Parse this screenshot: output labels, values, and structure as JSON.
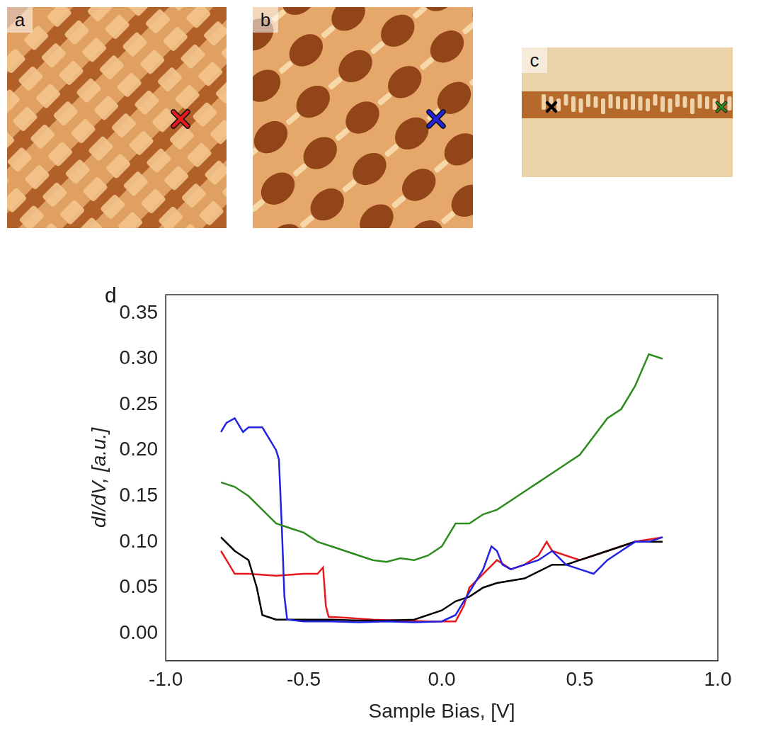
{
  "panels": [
    {
      "label": "a"
    },
    {
      "label": "b"
    },
    {
      "label": "c"
    },
    {
      "label": "d"
    }
  ],
  "chart_data": {
    "type": "line",
    "x_label": "Sample Bias, [V]",
    "y_label": "dI/dV, [a.u.]",
    "xlim": [
      -1.0,
      1.0
    ],
    "xticks": [
      {
        "value": -1.0,
        "label": "-1.0"
      },
      -0.5,
      {
        "value": 0.0,
        "label": "0.0"
      },
      0.5,
      {
        "value": 1.0,
        "label": "1.0"
      }
    ],
    "ylim": [
      -0.03,
      0.37
    ],
    "yticks": [
      {
        "value": 0.0,
        "label": "0.00"
      },
      0.05,
      {
        "value": 0.1,
        "label": "0.10"
      },
      0.15,
      {
        "value": 0.2,
        "label": "0.20"
      },
      0.25,
      {
        "value": 0.3,
        "label": "0.30"
      },
      0.35
    ],
    "grid": false,
    "series": [
      {
        "color": "#2e8b1e",
        "x": [
          -0.8,
          -0.75,
          -0.7,
          -0.65,
          -0.6,
          -0.55,
          -0.5,
          -0.45,
          -0.4,
          -0.35,
          -0.3,
          -0.25,
          -0.2,
          -0.15,
          -0.1,
          -0.05,
          0.0,
          0.05,
          0.1,
          0.15,
          0.2,
          0.25,
          0.3,
          0.35,
          0.4,
          0.45,
          0.5,
          0.55,
          0.6,
          0.65,
          0.7,
          0.75,
          0.8
        ],
        "values": [
          0.165,
          0.16,
          0.15,
          0.135,
          0.12,
          0.115,
          0.11,
          0.1,
          0.095,
          0.09,
          0.085,
          0.08,
          0.078,
          0.082,
          0.08,
          0.085,
          0.095,
          0.12,
          0.12,
          0.13,
          0.135,
          0.145,
          0.155,
          0.165,
          0.175,
          0.185,
          0.195,
          0.215,
          0.235,
          0.245,
          0.27,
          0.305,
          0.3
        ]
      },
      {
        "color": "#2222e0",
        "x": [
          -0.8,
          -0.78,
          -0.75,
          -0.72,
          -0.7,
          -0.65,
          -0.62,
          -0.6,
          -0.59,
          -0.58,
          -0.57,
          -0.56,
          -0.5,
          -0.4,
          -0.3,
          -0.2,
          -0.1,
          0.0,
          0.05,
          0.1,
          0.15,
          0.18,
          0.2,
          0.22,
          0.25,
          0.3,
          0.35,
          0.4,
          0.45,
          0.5,
          0.55,
          0.6,
          0.65,
          0.7,
          0.75,
          0.8
        ],
        "values": [
          0.22,
          0.23,
          0.235,
          0.22,
          0.225,
          0.225,
          0.21,
          0.2,
          0.19,
          0.12,
          0.04,
          0.015,
          0.013,
          0.013,
          0.012,
          0.013,
          0.012,
          0.013,
          0.02,
          0.045,
          0.07,
          0.095,
          0.09,
          0.075,
          0.07,
          0.075,
          0.08,
          0.09,
          0.075,
          0.07,
          0.065,
          0.08,
          0.09,
          0.1,
          0.1,
          0.105
        ]
      },
      {
        "color": "#000000",
        "x": [
          -0.8,
          -0.75,
          -0.7,
          -0.67,
          -0.65,
          -0.6,
          -0.5,
          -0.4,
          -0.3,
          -0.2,
          -0.1,
          0.0,
          0.05,
          0.1,
          0.15,
          0.2,
          0.3,
          0.4,
          0.45,
          0.5,
          0.55,
          0.6,
          0.7,
          0.8
        ],
        "values": [
          0.105,
          0.09,
          0.08,
          0.05,
          0.02,
          0.015,
          0.015,
          0.015,
          0.014,
          0.014,
          0.015,
          0.025,
          0.035,
          0.04,
          0.05,
          0.055,
          0.06,
          0.075,
          0.075,
          0.08,
          0.085,
          0.09,
          0.1,
          0.1
        ]
      },
      {
        "color": "#e8191c",
        "x": [
          -0.8,
          -0.78,
          -0.75,
          -0.7,
          -0.6,
          -0.5,
          -0.45,
          -0.43,
          -0.42,
          -0.41,
          -0.35,
          -0.25,
          -0.15,
          -0.05,
          0.05,
          0.08,
          0.1,
          0.15,
          0.2,
          0.25,
          0.3,
          0.35,
          0.38,
          0.4,
          0.45,
          0.5,
          0.6,
          0.7,
          0.8
        ],
        "values": [
          0.09,
          0.08,
          0.065,
          0.065,
          0.063,
          0.065,
          0.065,
          0.072,
          0.03,
          0.018,
          0.017,
          0.015,
          0.014,
          0.013,
          0.013,
          0.03,
          0.05,
          0.065,
          0.08,
          0.07,
          0.075,
          0.085,
          0.1,
          0.09,
          0.085,
          0.08,
          0.09,
          0.1,
          0.105
        ]
      }
    ]
  }
}
